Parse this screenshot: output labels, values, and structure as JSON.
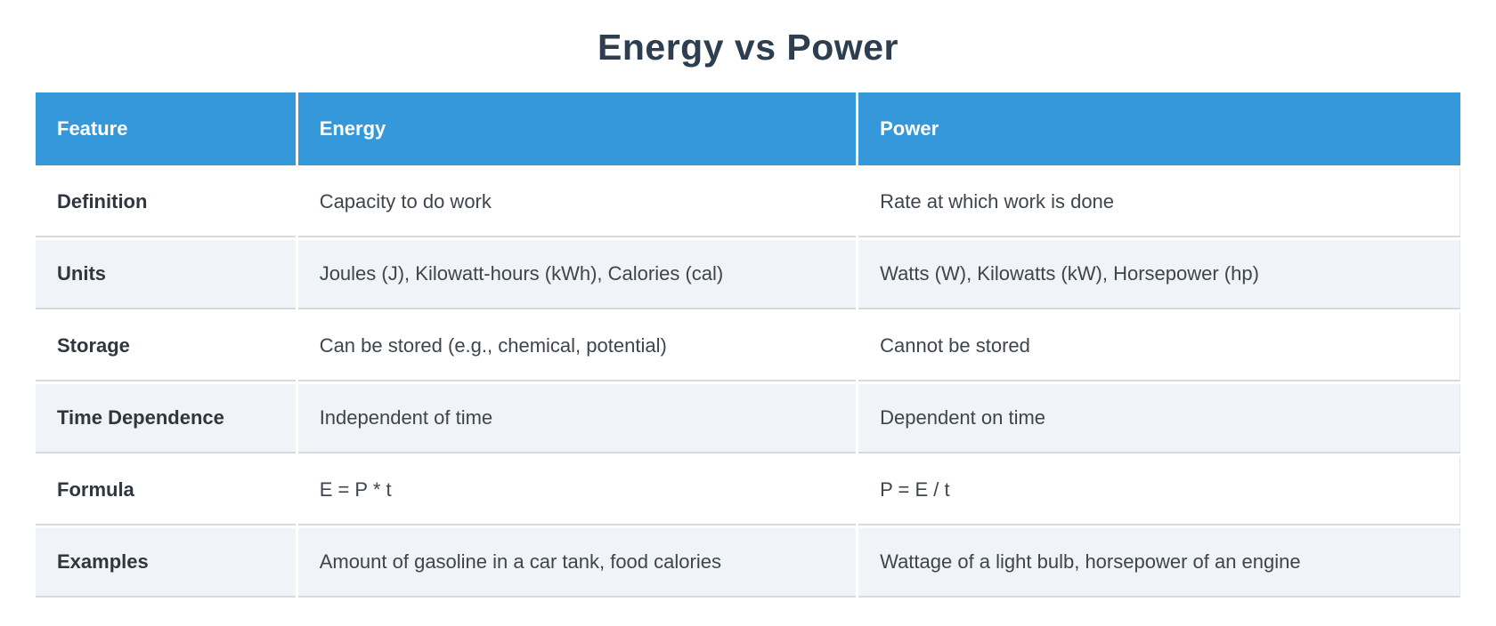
{
  "title": "Energy vs Power",
  "colors": {
    "header_bg": "#3498db",
    "header_text": "#ffffff",
    "title_text": "#2c3e50",
    "body_text": "#3e454d",
    "row_bg": "#ffffff",
    "row_alt_bg": "#f0f3f8",
    "separator": "#d8d9db"
  },
  "table": {
    "columns": [
      "Feature",
      "Energy",
      "Power"
    ],
    "rows": [
      {
        "feature": "Definition",
        "energy": "Capacity to do work",
        "power": "Rate at which work is done"
      },
      {
        "feature": "Units",
        "energy": "Joules (J), Kilowatt-hours (kWh), Calories (cal)",
        "power": "Watts (W), Kilowatts (kW), Horsepower (hp)"
      },
      {
        "feature": "Storage",
        "energy": "Can be stored (e.g., chemical, potential)",
        "power": "Cannot be stored"
      },
      {
        "feature": "Time Dependence",
        "energy": "Independent of time",
        "power": "Dependent on time"
      },
      {
        "feature": "Formula",
        "energy": "E = P * t",
        "power": "P = E / t"
      },
      {
        "feature": "Examples",
        "energy": "Amount of gasoline in a car tank, food calories",
        "power": "Wattage of a light bulb, horsepower of an engine"
      }
    ]
  },
  "chart_data": {
    "type": "table",
    "title": "Energy vs Power",
    "columns": [
      "Feature",
      "Energy",
      "Power"
    ],
    "rows": [
      [
        "Definition",
        "Capacity to do work",
        "Rate at which work is done"
      ],
      [
        "Units",
        "Joules (J), Kilowatt-hours (kWh), Calories (cal)",
        "Watts (W), Kilowatts (kW), Horsepower (hp)"
      ],
      [
        "Storage",
        "Can be stored (e.g., chemical, potential)",
        "Cannot be stored"
      ],
      [
        "Time Dependence",
        "Independent of time",
        "Dependent on time"
      ],
      [
        "Formula",
        "E = P * t",
        "P = E / t"
      ],
      [
        "Examples",
        "Amount of gasoline in a car tank, food calories",
        "Wattage of a light bulb, horsepower of an engine"
      ]
    ]
  }
}
